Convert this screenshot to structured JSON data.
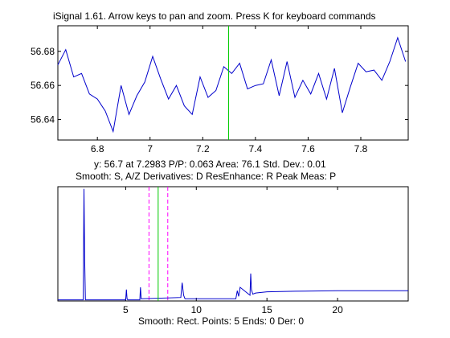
{
  "window": {
    "title": "iSignal 1.61. Arrow keys to pan and zoom. Press K for keyboard commands"
  },
  "readouts": {
    "status_line": "y: 56.7 at 7.2983   P/P: 0.063   Area: 76.1   Std. Dev.: 0.01",
    "commands_line": "Smooth: S, A/Z    Derivatives: D     ResEnhance: R     Peak Meas: P",
    "smooth_line": "Smooth: Rect.    Points: 5    Ends: 0    Der: 0"
  },
  "colors": {
    "signal": "#0000cc",
    "cursor": "#00cc00",
    "window_bounds": "#ff00ff",
    "axes": "#000000"
  },
  "chart_data": [
    {
      "type": "line",
      "title": "",
      "xlabel": "",
      "ylabel": "",
      "xlim": [
        6.65,
        7.98
      ],
      "ylim": [
        56.628,
        56.695
      ],
      "x_ticks": [
        6.8,
        7,
        7.2,
        7.4,
        7.6,
        7.8
      ],
      "x_tick_labels": [
        "6.8",
        "7",
        "7.2",
        "7.4",
        "7.6",
        "7.8"
      ],
      "y_ticks": [
        56.64,
        56.66,
        56.68
      ],
      "y_tick_labels": [
        "56.64",
        "56.66",
        "56.68"
      ],
      "cursor_x": 7.2983,
      "series": [
        {
          "x": [
            6.65,
            6.68,
            6.71,
            6.74,
            6.77,
            6.8,
            6.83,
            6.86,
            6.89,
            6.92,
            6.95,
            6.98,
            7.01,
            7.04,
            7.07,
            7.1,
            7.13,
            7.16,
            7.19,
            7.22,
            7.25,
            7.28,
            7.31,
            7.34,
            7.37,
            7.4,
            7.43,
            7.46,
            7.49,
            7.52,
            7.55,
            7.58,
            7.61,
            7.64,
            7.67,
            7.7,
            7.73,
            7.76,
            7.79,
            7.82,
            7.85,
            7.88,
            7.91,
            7.94,
            7.97
          ],
          "values": [
            56.672,
            56.681,
            56.665,
            56.667,
            56.655,
            56.652,
            56.645,
            56.633,
            56.66,
            56.643,
            56.654,
            56.662,
            56.677,
            56.664,
            56.652,
            56.66,
            56.648,
            56.643,
            56.665,
            56.653,
            56.657,
            56.671,
            56.667,
            56.673,
            56.658,
            56.66,
            56.661,
            56.675,
            56.654,
            56.674,
            56.653,
            56.663,
            56.655,
            56.667,
            56.652,
            56.67,
            56.644,
            56.659,
            56.673,
            56.668,
            56.669,
            56.663,
            56.674,
            56.688,
            56.674
          ]
        }
      ]
    },
    {
      "type": "line",
      "title": "",
      "xlabel": "",
      "ylabel": "",
      "xlim": [
        0.2,
        25
      ],
      "ylim": [
        0,
        1
      ],
      "x_ticks": [
        5,
        10,
        15,
        20
      ],
      "x_tick_labels": [
        "5",
        "10",
        "15",
        "20"
      ],
      "cursor_x": 7.3,
      "window_bounds": [
        6.65,
        7.98
      ],
      "series": [
        {
          "x": [
            0.2,
            2.0,
            2.05,
            2.1,
            2.15,
            2.2,
            5.0,
            5.05,
            5.1,
            5.15,
            6.0,
            6.05,
            6.1,
            8.9,
            9.0,
            9.1,
            9.2,
            9.3,
            12.8,
            12.9,
            13.0,
            13.1,
            13.8,
            13.85,
            13.9,
            14.0,
            14.2,
            15.0,
            17.0,
            20.0,
            25.0
          ],
          "values": [
            0.01,
            0.01,
            0.98,
            0.35,
            0.01,
            0.01,
            0.01,
            0.1,
            0.02,
            0.01,
            0.01,
            0.12,
            0.02,
            0.03,
            0.16,
            0.05,
            0.02,
            0.02,
            0.02,
            0.09,
            0.04,
            0.12,
            0.05,
            0.24,
            0.1,
            0.06,
            0.07,
            0.08,
            0.085,
            0.09,
            0.09
          ]
        }
      ]
    }
  ]
}
